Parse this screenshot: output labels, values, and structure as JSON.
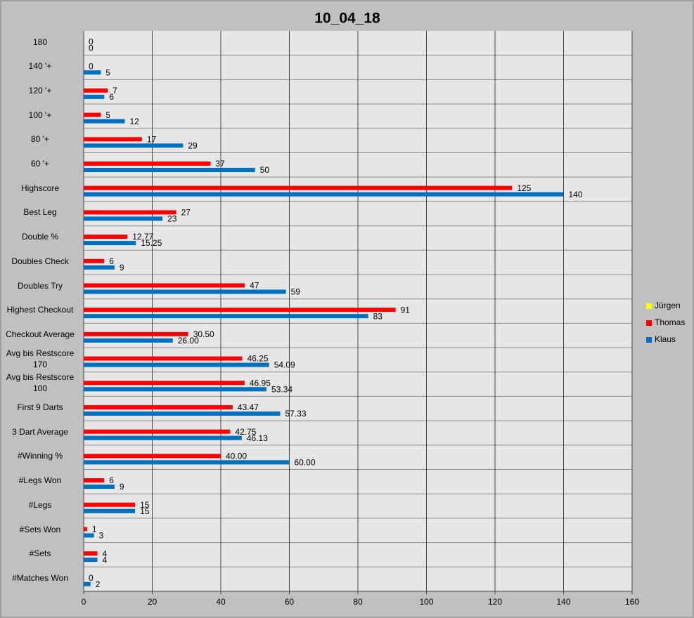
{
  "chart_data": {
    "type": "barh",
    "title": "10_04_18",
    "categories": [
      "180",
      "140 '+",
      "120 '+",
      "100 '+",
      "80 '+",
      "60 '+",
      "Highscore",
      "Best Leg",
      "Double %",
      "Doubles Check",
      "Doubles Try",
      "Highest Checkout",
      "Checkout Average",
      "Avg bis Restscore\n170",
      "Avg bis Restscore\n100",
      "First 9 Darts",
      "3 Dart Average",
      "#Winning %",
      "#Legs Won",
      "#Legs",
      "#Sets Won",
      "#Sets",
      "#Matches Won"
    ],
    "series": [
      {
        "name": "Jürgen",
        "color": "#ffff00",
        "values": [
          null,
          null,
          null,
          null,
          null,
          null,
          null,
          null,
          null,
          null,
          null,
          null,
          null,
          null,
          null,
          null,
          null,
          null,
          null,
          null,
          null,
          null,
          null
        ]
      },
      {
        "name": "Thomas",
        "color": "#ff0000",
        "values": [
          0,
          0,
          7,
          5,
          17,
          37,
          125,
          27,
          12.77,
          6,
          47,
          91,
          30.5,
          46.25,
          46.95,
          43.47,
          42.75,
          40,
          6,
          15,
          1,
          4,
          0
        ],
        "value_labels": [
          "0",
          "0",
          "7",
          "5",
          "17",
          "37",
          "125",
          "27",
          "12.77",
          "6",
          "47",
          "91",
          "30.50",
          "46.25",
          "46.95",
          "43.47",
          "42.75",
          "40.00",
          "6",
          "15",
          "1",
          "4",
          "0"
        ]
      },
      {
        "name": "Klaus",
        "color": "#0070c0",
        "values": [
          0,
          5,
          6,
          12,
          29,
          50,
          140,
          23,
          15.25,
          9,
          59,
          83,
          26,
          54.09,
          53.34,
          57.33,
          46.13,
          60,
          9,
          15,
          3,
          4,
          2
        ],
        "value_labels": [
          "0",
          "5",
          "6",
          "12",
          "29",
          "50",
          "140",
          "23",
          "15.25",
          "9",
          "59",
          "83",
          "26.00",
          "54.09",
          "53.34",
          "57.33",
          "46.13",
          "60.00",
          "9",
          "15",
          "3",
          "4",
          "2"
        ]
      }
    ],
    "xlim": [
      0,
      160
    ],
    "xticks": [
      0,
      20,
      40,
      60,
      80,
      100,
      120,
      140,
      160
    ],
    "grid": true,
    "legend": "right"
  }
}
